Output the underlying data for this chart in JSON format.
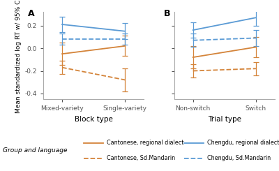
{
  "panel_A": {
    "xlabel": "Block type",
    "xticks": [
      "Mixed-variety",
      "Single-variety"
    ],
    "xlim": [
      0.7,
      2.3
    ],
    "ylim": [
      -0.45,
      0.32
    ],
    "yticks": [
      -0.4,
      -0.2,
      0.0,
      0.2
    ],
    "series": [
      {
        "label": "Cantonese, regional dialect",
        "color": "#D4843A",
        "linestyle": "solid",
        "x": [
          1,
          2
        ],
        "y": [
          -0.05,
          0.02
        ],
        "yerr_lo": [
          0.1,
          0.09
        ],
        "yerr_hi": [
          0.1,
          0.09
        ]
      },
      {
        "label": "Cantonese, Sd.Mandarin",
        "color": "#D4843A",
        "linestyle": "dashed",
        "x": [
          1,
          2
        ],
        "y": [
          -0.17,
          -0.28
        ],
        "yerr_lo": [
          0.06,
          0.1
        ],
        "yerr_hi": [
          0.06,
          0.1
        ]
      },
      {
        "label": "Chengdu, regional dialect",
        "color": "#5B9BD5",
        "linestyle": "solid",
        "x": [
          1,
          2
        ],
        "y": [
          0.21,
          0.15
        ],
        "yerr_lo": [
          0.07,
          0.07
        ],
        "yerr_hi": [
          0.07,
          0.07
        ]
      },
      {
        "label": "Chengdu, Sd.Mandarin",
        "color": "#5B9BD5",
        "linestyle": "dashed",
        "x": [
          1,
          2
        ],
        "y": [
          0.08,
          0.08
        ],
        "yerr_lo": [
          0.05,
          0.05
        ],
        "yerr_hi": [
          0.05,
          0.05
        ]
      }
    ]
  },
  "panel_B": {
    "xlabel": "Trial type",
    "xticks": [
      "Non-switch",
      "Switch"
    ],
    "xlim": [
      0.7,
      2.3
    ],
    "ylim": [
      -0.45,
      0.32
    ],
    "yticks": [
      -0.4,
      -0.2,
      0.0,
      0.2
    ],
    "series": [
      {
        "label": "Cantonese, regional dialect",
        "color": "#D4843A",
        "linestyle": "solid",
        "x": [
          1,
          2
        ],
        "y": [
          -0.08,
          0.01
        ],
        "yerr_lo": [
          0.1,
          0.09
        ],
        "yerr_hi": [
          0.1,
          0.09
        ]
      },
      {
        "label": "Cantonese, Sd.Mandarin",
        "color": "#D4843A",
        "linestyle": "dashed",
        "x": [
          1,
          2
        ],
        "y": [
          -0.2,
          -0.18
        ],
        "yerr_lo": [
          0.06,
          0.06
        ],
        "yerr_hi": [
          0.06,
          0.06
        ]
      },
      {
        "label": "Chengdu, regional dialect",
        "color": "#5B9BD5",
        "linestyle": "solid",
        "x": [
          1,
          2
        ],
        "y": [
          0.16,
          0.27
        ],
        "yerr_lo": [
          0.07,
          0.07
        ],
        "yerr_hi": [
          0.07,
          0.07
        ]
      },
      {
        "label": "Chengdu, Sd.Mandarin",
        "color": "#5B9BD5",
        "linestyle": "dashed",
        "x": [
          1,
          2
        ],
        "y": [
          0.07,
          0.09
        ],
        "yerr_lo": [
          0.06,
          0.07
        ],
        "yerr_hi": [
          0.06,
          0.07
        ]
      }
    ]
  },
  "ylabel": "Mean standardized log RT w/ 95% CI",
  "legend_title": "Group and language",
  "legend_entries_row1": [
    {
      "label": "Cantonese, regional dialect",
      "color": "#D4843A",
      "linestyle": "solid"
    },
    {
      "label": "Chengdu, regional dialect",
      "color": "#5B9BD5",
      "linestyle": "solid"
    }
  ],
  "legend_entries_row2": [
    {
      "label": "Cantonese, Sd.Mandarin",
      "color": "#D4843A",
      "linestyle": "dashed"
    },
    {
      "label": "Chengdu, Sd.Mandarin",
      "color": "#5B9BD5",
      "linestyle": "dashed"
    }
  ],
  "background_color": "#FFFFFF",
  "panel_bg": "#FFFFFF",
  "spine_color": "#AAAAAA"
}
